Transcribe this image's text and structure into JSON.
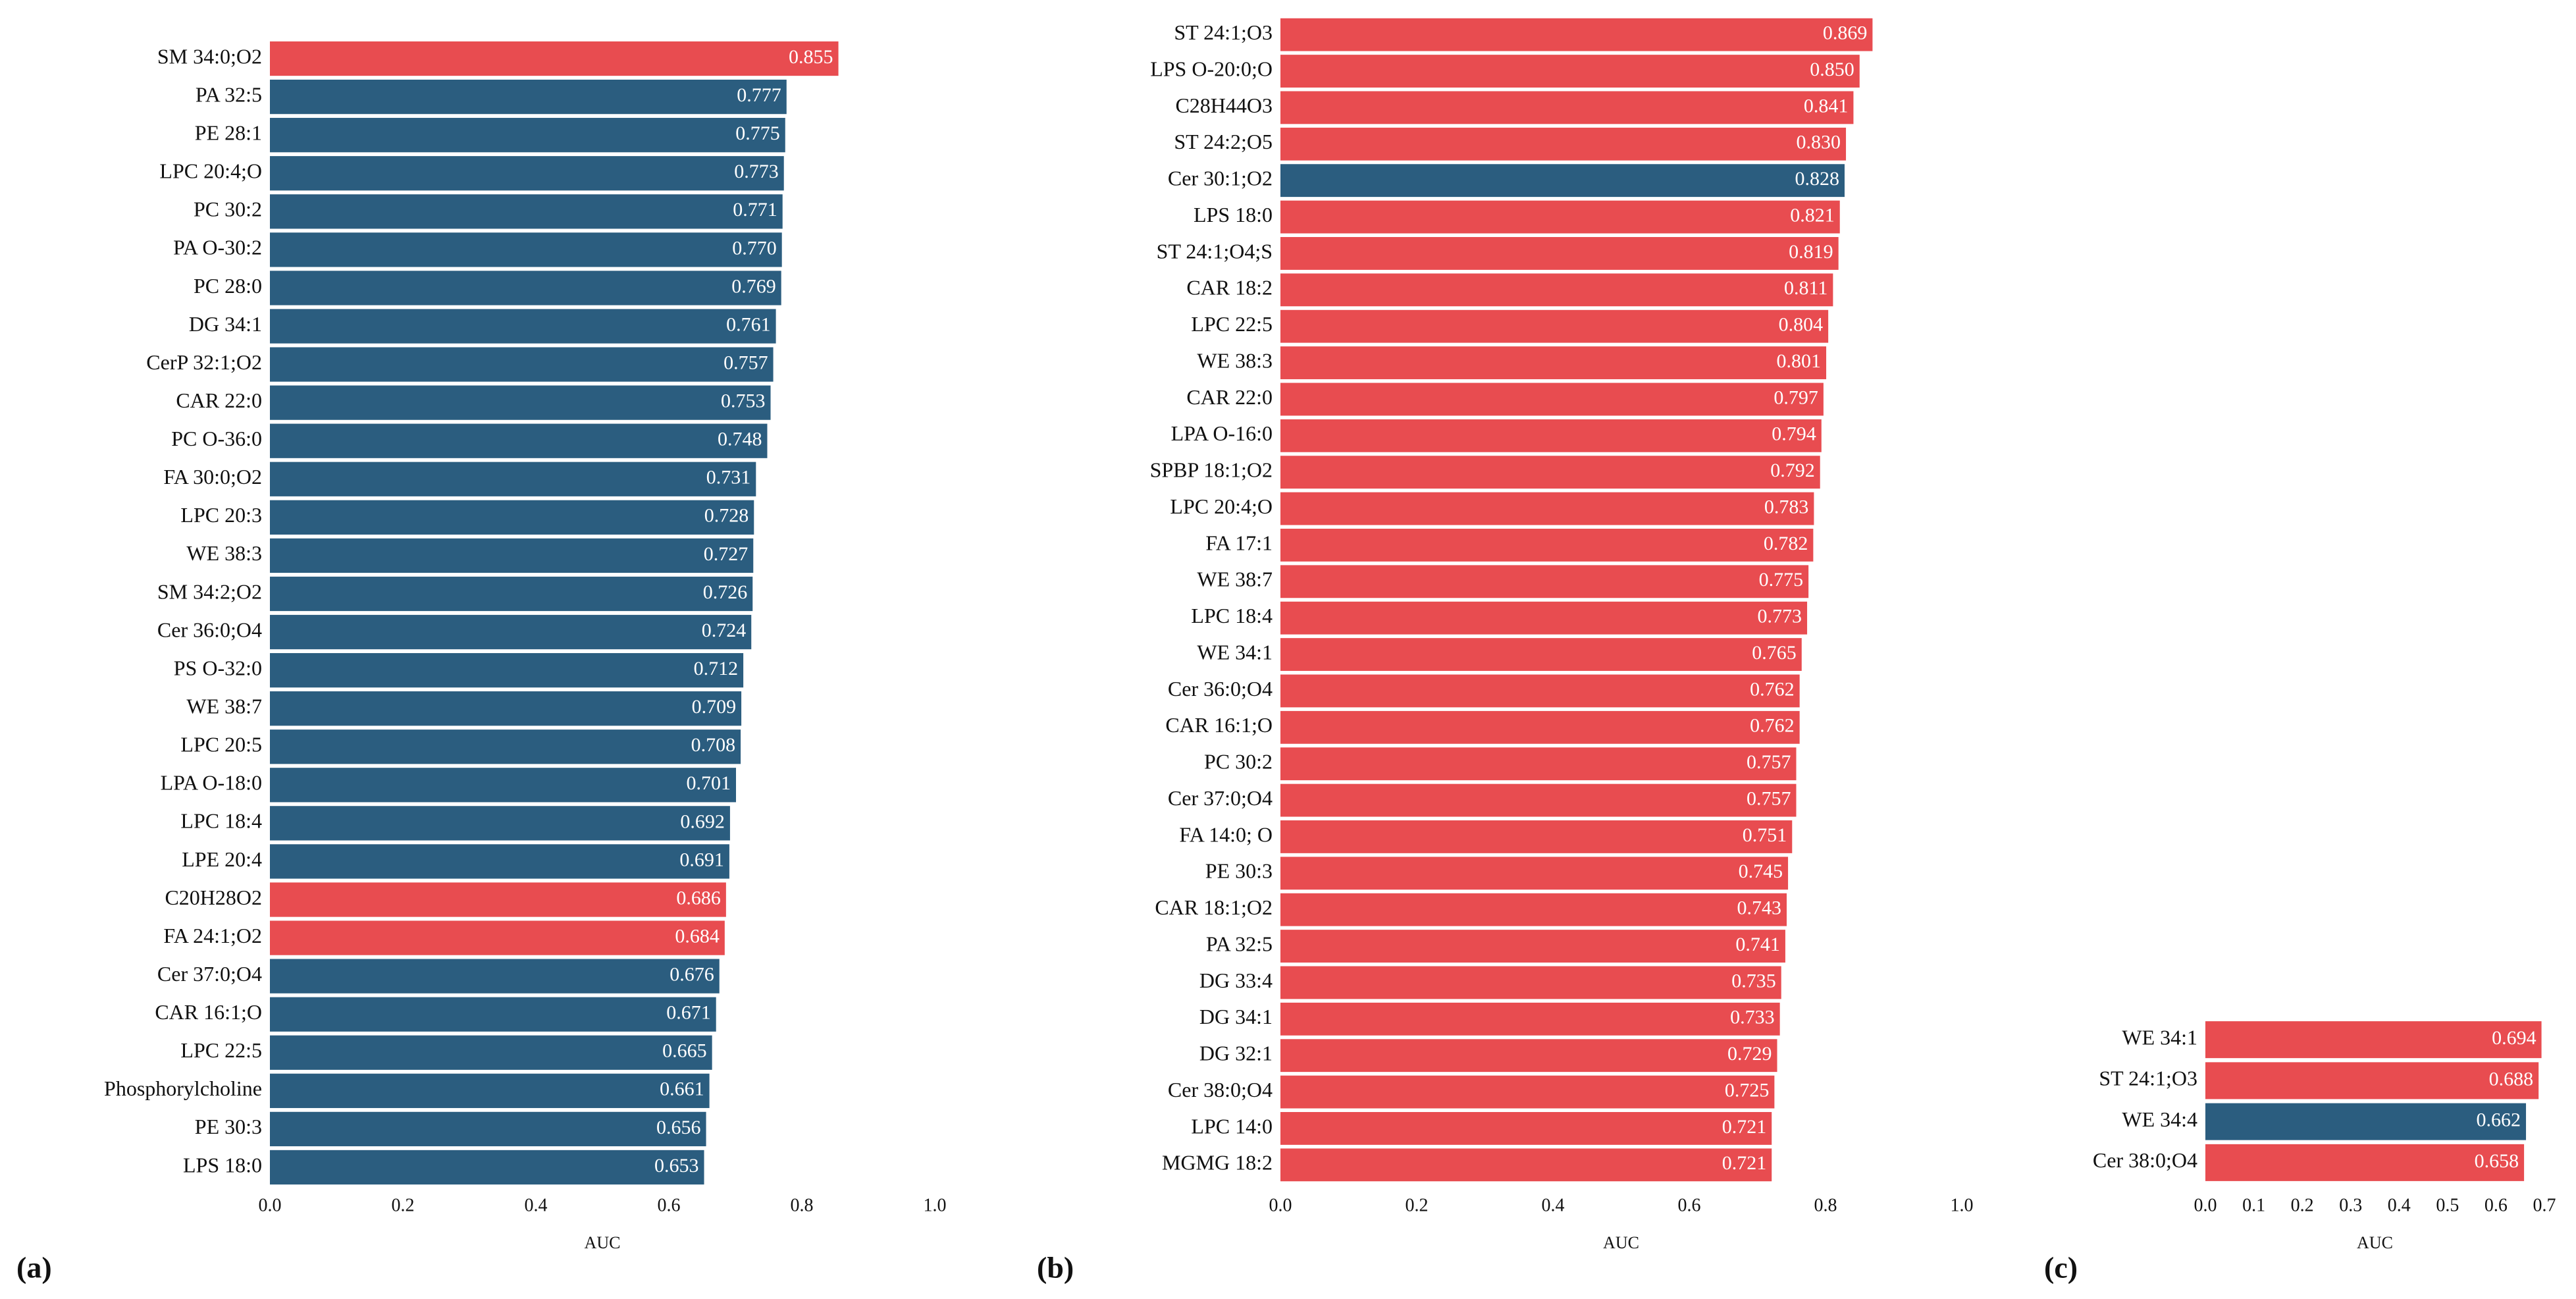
{
  "chart_data": [
    {
      "type": "bar",
      "orientation": "horizontal",
      "panel_label": "(a)",
      "xlabel": "AUC",
      "categories": [
        "SM 34:0;O2",
        "PA 32:5",
        "PE 28:1",
        "LPC 20:4;O",
        "PC 30:2",
        "PA O-30:2",
        "PC 28:0",
        "DG 34:1",
        "CerP 32:1;O2",
        "CAR 22:0",
        "PC O-36:0",
        "FA 30:0;O2",
        "LPC 20:3",
        "WE 38:3",
        "SM 34:2;O2",
        "Cer 36:0;O4",
        "PS O-32:0",
        "WE 38:7",
        "LPC 20:5",
        "LPA O-18:0",
        "LPC 18:4",
        "LPE 20:4",
        "C20H28O2",
        "FA 24:1;O2",
        "Cer 37:0;O4",
        "CAR 16:1;O",
        "LPC 22:5",
        "Phosphorylcholine",
        "PE 30:3",
        "LPS 18:0"
      ],
      "values": [
        0.855,
        0.777,
        0.775,
        0.773,
        0.771,
        0.77,
        0.769,
        0.761,
        0.757,
        0.753,
        0.748,
        0.731,
        0.728,
        0.727,
        0.726,
        0.724,
        0.712,
        0.709,
        0.708,
        0.701,
        0.692,
        0.691,
        0.686,
        0.684,
        0.676,
        0.671,
        0.665,
        0.661,
        0.656,
        0.653
      ],
      "value_labels": [
        "0.855",
        "0.777",
        "0.775",
        "0.773",
        "0.771",
        "0.770",
        "0.769",
        "0.761",
        "0.757",
        "0.753",
        "0.748",
        "0.731",
        "0.728",
        "0.727",
        "0.726",
        "0.724",
        "0.712",
        "0.709",
        "0.708",
        "0.701",
        "0.692",
        "0.691",
        "0.686",
        "0.684",
        "0.676",
        "0.671",
        "0.665",
        "0.661",
        "0.656",
        "0.653"
      ],
      "colors": [
        "#e84c50",
        "#2b5d7f",
        "#2b5d7f",
        "#2b5d7f",
        "#2b5d7f",
        "#2b5d7f",
        "#2b5d7f",
        "#2b5d7f",
        "#2b5d7f",
        "#2b5d7f",
        "#2b5d7f",
        "#2b5d7f",
        "#2b5d7f",
        "#2b5d7f",
        "#2b5d7f",
        "#2b5d7f",
        "#2b5d7f",
        "#2b5d7f",
        "#2b5d7f",
        "#2b5d7f",
        "#2b5d7f",
        "#2b5d7f",
        "#e84c50",
        "#e84c50",
        "#2b5d7f",
        "#2b5d7f",
        "#2b5d7f",
        "#2b5d7f",
        "#2b5d7f",
        "#2b5d7f"
      ],
      "xlim": [
        0,
        1
      ],
      "xticks": [
        {
          "value": 0,
          "label": "0.0"
        },
        0.2,
        0.4,
        0.6,
        0.8,
        {
          "value": 1,
          "label": "1.0"
        }
      ]
    },
    {
      "type": "bar",
      "orientation": "horizontal",
      "panel_label": "(b)",
      "xlabel": "AUC",
      "categories": [
        "ST 24:1;O3",
        "LPS O-20:0;O",
        "C28H44O3",
        "ST 24:2;O5",
        "Cer 30:1;O2",
        "LPS 18:0",
        "ST 24:1;O4;S",
        "CAR 18:2",
        "LPC 22:5",
        "WE 38:3",
        "CAR 22:0",
        "LPA O-16:0",
        "SPBP 18:1;O2",
        "LPC 20:4;O",
        "FA 17:1",
        "WE 38:7",
        "LPC 18:4",
        "WE 34:1",
        "Cer 36:0;O4",
        "CAR 16:1;O",
        "PC 30:2",
        "Cer 37:0;O4",
        "FA 14:0; O",
        "PE 30:3",
        "CAR 18:1;O2",
        "PA 32:5",
        "DG 33:4",
        "DG 34:1",
        "DG 32:1",
        "Cer 38:0;O4",
        "LPC 14:0",
        "MGMG 18:2"
      ],
      "values": [
        0.869,
        0.85,
        0.841,
        0.83,
        0.828,
        0.821,
        0.819,
        0.811,
        0.804,
        0.801,
        0.797,
        0.794,
        0.792,
        0.783,
        0.782,
        0.775,
        0.773,
        0.765,
        0.762,
        0.762,
        0.757,
        0.757,
        0.751,
        0.745,
        0.743,
        0.741,
        0.735,
        0.733,
        0.729,
        0.725,
        0.721,
        0.721
      ],
      "value_labels": [
        "0.869",
        "0.850",
        "0.841",
        "0.830",
        "0.828",
        "0.821",
        "0.819",
        "0.811",
        "0.804",
        "0.801",
        "0.797",
        "0.794",
        "0.792",
        "0.783",
        "0.782",
        "0.775",
        "0.773",
        "0.765",
        "0.762",
        "0.762",
        "0.757",
        "0.757",
        "0.751",
        "0.745",
        "0.743",
        "0.741",
        "0.735",
        "0.733",
        "0.729",
        "0.725",
        "0.721",
        "0.721"
      ],
      "colors": [
        "#e84c50",
        "#e84c50",
        "#e84c50",
        "#e84c50",
        "#2b5d7f",
        "#e84c50",
        "#e84c50",
        "#e84c50",
        "#e84c50",
        "#e84c50",
        "#e84c50",
        "#e84c50",
        "#e84c50",
        "#e84c50",
        "#e84c50",
        "#e84c50",
        "#e84c50",
        "#e84c50",
        "#e84c50",
        "#e84c50",
        "#e84c50",
        "#e84c50",
        "#e84c50",
        "#e84c50",
        "#e84c50",
        "#e84c50",
        "#e84c50",
        "#e84c50",
        "#e84c50",
        "#e84c50",
        "#e84c50",
        "#e84c50"
      ],
      "xlim": [
        0,
        1
      ],
      "xticks": [
        {
          "value": 0,
          "label": "0.0"
        },
        0.2,
        0.4,
        0.6,
        0.8,
        {
          "value": 1,
          "label": "1.0"
        }
      ]
    },
    {
      "type": "bar",
      "orientation": "horizontal",
      "panel_label": "(c)",
      "xlabel": "AUC",
      "categories": [
        "WE 34:1",
        "ST 24:1;O3",
        "WE 34:4",
        "Cer 38:0;O4"
      ],
      "values": [
        0.694,
        0.688,
        0.662,
        0.658
      ],
      "value_labels": [
        "0.694",
        "0.688",
        "0.662",
        "0.658"
      ],
      "colors": [
        "#e84c50",
        "#e84c50",
        "#2b5d7f",
        "#e84c50"
      ],
      "xlim": [
        0,
        0.7
      ],
      "xticks": [
        {
          "value": 0,
          "label": "0.0"
        },
        0.1,
        0.2,
        0.3,
        0.4,
        0.5,
        0.6,
        0.7
      ]
    }
  ]
}
